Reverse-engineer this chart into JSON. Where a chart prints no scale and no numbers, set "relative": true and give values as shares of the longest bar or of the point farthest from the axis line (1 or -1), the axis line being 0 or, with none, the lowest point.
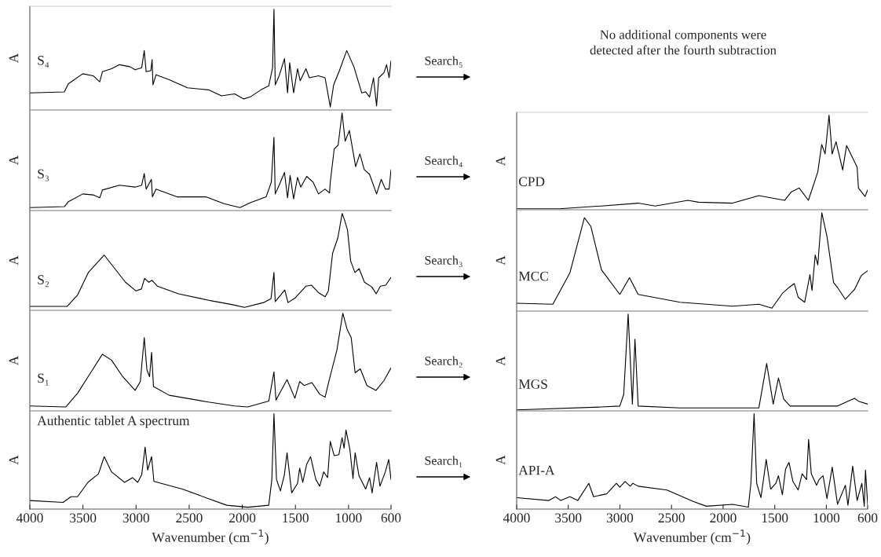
{
  "chart_data": [
    {
      "type": "line",
      "ylabel": "A",
      "xlim": [
        4000,
        600
      ],
      "relative": true,
      "tick_labels": false,
      "series": [
        {
          "name": "S₄",
          "color": "#000000",
          "x": [
            4000,
            3675,
            3638,
            3502,
            3404,
            3342,
            3317,
            3231,
            3157,
            3058,
            3009,
            2947,
            2923,
            2905,
            2861,
            2849,
            2841,
            2812,
            2688,
            2516,
            2319,
            2196,
            2072,
            1986,
            1925,
            1825,
            1751,
            1715,
            1702,
            1690,
            1653,
            1603,
            1574,
            1554,
            1517,
            1480,
            1455,
            1401,
            1369,
            1283,
            1221,
            1197,
            1172,
            1140,
            1086,
            1017,
            950,
            876,
            839,
            802,
            765,
            736,
            716,
            667,
            642,
            618,
            600
          ],
          "values": [
            0.17,
            0.18,
            0.26,
            0.36,
            0.34,
            0.28,
            0.38,
            0.41,
            0.45,
            0.43,
            0.4,
            0.42,
            0.59,
            0.38,
            0.39,
            0.5,
            0.25,
            0.35,
            0.3,
            0.22,
            0.2,
            0.14,
            0.16,
            0.11,
            0.13,
            0.2,
            0.24,
            0.42,
            1,
            0.25,
            0.34,
            0.51,
            0.17,
            0.47,
            0.17,
            0.41,
            0.29,
            0.41,
            0.32,
            0.34,
            0.32,
            0.18,
            0.03,
            0.25,
            0.39,
            0.59,
            0.43,
            0.17,
            0.18,
            0.13,
            0.32,
            0.04,
            0.32,
            0.37,
            0.45,
            0.32,
            0.49
          ]
        }
      ]
    },
    {
      "type": "line",
      "ylabel": "A",
      "xlim": [
        4000,
        600
      ],
      "relative": true,
      "tick_labels": false,
      "series": [
        {
          "name": "S₃",
          "color": "#000000",
          "x": [
            4000,
            3675,
            3638,
            3502,
            3404,
            3342,
            3317,
            3157,
            3009,
            2947,
            2923,
            2905,
            2856,
            2846,
            2812,
            2615,
            2343,
            2171,
            2022,
            1925,
            1776,
            1727,
            1702,
            1690,
            1653,
            1603,
            1574,
            1550,
            1517,
            1480,
            1450,
            1394,
            1333,
            1283,
            1221,
            1179,
            1172,
            1135,
            1098,
            1061,
            1032,
            992,
            962,
            933,
            893,
            852,
            802,
            736,
            692,
            654,
            618,
            600
          ],
          "values": [
            0.03,
            0.04,
            0.09,
            0.17,
            0.16,
            0.13,
            0.21,
            0.26,
            0.24,
            0.26,
            0.38,
            0.22,
            0.32,
            0.14,
            0.22,
            0.14,
            0.14,
            0.07,
            0.03,
            0.08,
            0.14,
            0.29,
            0.75,
            0.17,
            0.26,
            0.39,
            0.13,
            0.36,
            0.12,
            0.34,
            0.24,
            0.35,
            0.29,
            0.17,
            0.22,
            0.18,
            0.29,
            0.63,
            0.67,
            1,
            0.71,
            0.82,
            0.63,
            0.45,
            0.58,
            0.42,
            0.37,
            0.17,
            0.32,
            0.22,
            0.22,
            0.42
          ]
        }
      ]
    },
    {
      "type": "line",
      "ylabel": "A",
      "xlim": [
        4000,
        600
      ],
      "relative": true,
      "tick_labels": false,
      "series": [
        {
          "name": "S₂",
          "color": "#000000",
          "x": [
            4000,
            3650,
            3550,
            3450,
            3300,
            3200,
            3100,
            3000,
            2950,
            2920,
            2880,
            2850,
            2800,
            2600,
            2300,
            2100,
            1980,
            1800,
            1730,
            1702,
            1690,
            1600,
            1570,
            1500,
            1400,
            1350,
            1280,
            1220,
            1190,
            1150,
            1100,
            1060,
            1040,
            1010,
            980,
            940,
            900,
            850,
            780,
            740,
            700,
            650,
            600
          ],
          "values": [
            0.04,
            0.04,
            0.16,
            0.39,
            0.57,
            0.43,
            0.29,
            0.2,
            0.22,
            0.33,
            0.29,
            0.31,
            0.25,
            0.17,
            0.1,
            0.06,
            0.03,
            0.08,
            0.12,
            0.39,
            0.09,
            0.21,
            0.08,
            0.13,
            0.25,
            0.26,
            0.18,
            0.14,
            0.2,
            0.59,
            0.75,
            1,
            0.94,
            0.83,
            0.51,
            0.39,
            0.43,
            0.29,
            0.24,
            0.17,
            0.25,
            0.26,
            0.34
          ]
        }
      ]
    },
    {
      "type": "line",
      "ylabel": "A",
      "xlim": [
        4000,
        600
      ],
      "relative": true,
      "tick_labels": false,
      "series": [
        {
          "name": "S₁",
          "color": "#000000",
          "x": [
            4000,
            3662,
            3551,
            3428,
            3317,
            3231,
            3132,
            3009,
            2960,
            2923,
            2898,
            2873,
            2854,
            2836,
            2688,
            2319,
            2072,
            1949,
            1751,
            1702,
            1683,
            1579,
            1505,
            1460,
            1418,
            1345,
            1271,
            1221,
            1172,
            1110,
            1054,
            1012,
            975,
            938,
            889,
            827,
            741,
            667,
            600
          ],
          "values": [
            0.05,
            0.04,
            0.18,
            0.39,
            0.58,
            0.52,
            0.36,
            0.21,
            0.3,
            0.75,
            0.42,
            0.35,
            0.6,
            0.25,
            0.16,
            0.09,
            0.05,
            0.04,
            0.1,
            0.4,
            0.11,
            0.32,
            0.13,
            0.3,
            0.26,
            0.29,
            0.17,
            0.14,
            0.36,
            0.62,
            1,
            0.83,
            0.75,
            0.39,
            0.43,
            0.26,
            0.21,
            0.31,
            0.44
          ]
        }
      ]
    },
    {
      "type": "line",
      "ylabel": "A",
      "xlabel": "Wavenumber (cm$^{−1}$)",
      "xlim": [
        4000,
        600
      ],
      "xticks": [
        4000,
        3500,
        3000,
        2500,
        2000,
        1500,
        1000,
        600
      ],
      "relative": true,
      "tick_labels": "x",
      "series": [
        {
          "name": "Authentic tablet A spectrum",
          "color": "#000000",
          "x": [
            4000,
            3687,
            3613,
            3551,
            3453,
            3354,
            3300,
            3231,
            3108,
            3034,
            2985,
            2947,
            2915,
            2891,
            2854,
            2832,
            2565,
            2319,
            2146,
            1949,
            1751,
            1722,
            1702,
            1678,
            1641,
            1604,
            1579,
            1535,
            1480,
            1460,
            1431,
            1394,
            1357,
            1308,
            1271,
            1234,
            1197,
            1172,
            1135,
            1091,
            1061,
            1042,
            1024,
            988,
            958,
            938,
            902,
            839,
            802,
            778,
            736,
            704,
            654,
            622,
            600
          ],
          "values": [
            0.09,
            0.07,
            0.13,
            0.13,
            0.28,
            0.37,
            0.55,
            0.39,
            0.28,
            0.33,
            0.28,
            0.36,
            0.65,
            0.41,
            0.55,
            0.29,
            0.21,
            0.11,
            0.04,
            0.02,
            0.04,
            0.31,
            1,
            0.31,
            0.19,
            0.36,
            0.59,
            0.17,
            0.27,
            0.43,
            0.28,
            0.47,
            0.55,
            0.31,
            0.24,
            0.39,
            0.33,
            0.71,
            0.56,
            0.57,
            0.75,
            0.64,
            0.83,
            0.63,
            0.32,
            0.59,
            0.35,
            0.21,
            0.33,
            0.17,
            0.49,
            0.24,
            0.39,
            0.52,
            0.31
          ]
        }
      ]
    },
    {
      "type": "other",
      "annotations": [
        "Search₅",
        "Search₄",
        "Search₃",
        "Search₂",
        "Search₁"
      ]
    },
    {
      "type": "other",
      "title": "No additional components were\ndetected after the fourth subtraction"
    },
    {
      "type": "line",
      "ylabel": "A",
      "xlim": [
        4000,
        600
      ],
      "relative": true,
      "tick_labels": false,
      "series": [
        {
          "name": "CPD",
          "color": "#000000",
          "x": [
            4000,
            3586,
            3179,
            2823,
            2658,
            2341,
            2239,
            1909,
            1654,
            1403,
            1339,
            1263,
            1174,
            1083,
            1045,
            1012,
            974,
            944,
            906,
            842,
            804,
            702,
            689,
            625,
            600
          ],
          "values": [
            0.01,
            0.01,
            0.04,
            0.07,
            0.04,
            0.1,
            0.08,
            0.07,
            0.15,
            0.1,
            0.19,
            0.23,
            0.1,
            0.4,
            0.69,
            0.59,
            1.0,
            0.59,
            0.72,
            0.42,
            0.68,
            0.45,
            0.23,
            0.14,
            0.21
          ]
        }
      ]
    },
    {
      "type": "line",
      "ylabel": "A",
      "xlim": [
        4000,
        600
      ],
      "relative": true,
      "tick_labels": false,
      "series": [
        {
          "name": "MCC",
          "color": "#000000",
          "x": [
            4000,
            3649,
            3484,
            3344,
            3281,
            3179,
            3001,
            2907,
            2823,
            2417,
            1909,
            1654,
            1527,
            1426,
            1362,
            1311,
            1273,
            1210,
            1159,
            1139,
            1108,
            1083,
            1044,
            994,
            930,
            892,
            816,
            727,
            663,
            600
          ],
          "values": [
            0.08,
            0.07,
            0.39,
            0.95,
            0.86,
            0.42,
            0.17,
            0.34,
            0.17,
            0.09,
            0.05,
            0.07,
            0.03,
            0.18,
            0.24,
            0.28,
            0.14,
            0.09,
            0.37,
            0.21,
            0.57,
            0.47,
            1.0,
            0.76,
            0.29,
            0.24,
            0.12,
            0.22,
            0.36,
            0.41
          ]
        }
      ]
    },
    {
      "type": "line",
      "ylabel": "A",
      "xlim": [
        4000,
        600
      ],
      "relative": true,
      "tick_labels": false,
      "series": [
        {
          "name": "MGS",
          "color": "#000000",
          "x": [
            4000,
            3179,
            3001,
            2963,
            2920,
            2879,
            2854,
            2823,
            2417,
            1654,
            1578,
            1515,
            1464,
            1413,
            1350,
            892,
            727,
            689,
            600
          ],
          "values": [
            0.01,
            0.04,
            0.05,
            0.17,
            1,
            0.07,
            0.74,
            0.05,
            0.03,
            0.03,
            0.49,
            0.07,
            0.34,
            0.12,
            0.05,
            0.05,
            0.13,
            0.1,
            0.07
          ]
        }
      ]
    },
    {
      "type": "line",
      "ylabel": "A",
      "xlabel": "Wavenumber (cm$^{−1}$)",
      "xlim": [
        4000,
        600
      ],
      "xticks": [
        4000,
        3500,
        3000,
        2500,
        2000,
        1500,
        1000,
        600
      ],
      "relative": true,
      "tick_labels": "x",
      "series": [
        {
          "name": "API-A",
          "color": "#000000",
          "x": [
            4000,
            3687,
            3624,
            3573,
            3484,
            3408,
            3301,
            3255,
            3128,
            3034,
            3001,
            2950,
            2900,
            2874,
            2823,
            2544,
            2290,
            2163,
            1909,
            1756,
            1731,
            1700,
            1675,
            1634,
            1609,
            1583,
            1540,
            1489,
            1464,
            1426,
            1395,
            1362,
            1324,
            1273,
            1235,
            1192,
            1172,
            1146,
            1095,
            1070,
            1032,
            994,
            943,
            892,
            816,
            791,
            745,
            702,
            656,
            633,
            621,
            600
          ],
          "values": [
            0.12,
            0.09,
            0.13,
            0.09,
            0.13,
            0.09,
            0.27,
            0.13,
            0.16,
            0.27,
            0.23,
            0.29,
            0.24,
            0.27,
            0.24,
            0.2,
            0.08,
            0.03,
            0.05,
            0.02,
            0.27,
            1,
            0.27,
            0.12,
            0.31,
            0.52,
            0.21,
            0.27,
            0.35,
            0.15,
            0.42,
            0.49,
            0.29,
            0.2,
            0.37,
            0.31,
            0.73,
            0.37,
            0.25,
            0.31,
            0.35,
            0.11,
            0.44,
            0.05,
            0.25,
            0.04,
            0.45,
            0.09,
            0.27,
            0.03,
            0.41,
            0.05
          ]
        }
      ]
    }
  ]
}
